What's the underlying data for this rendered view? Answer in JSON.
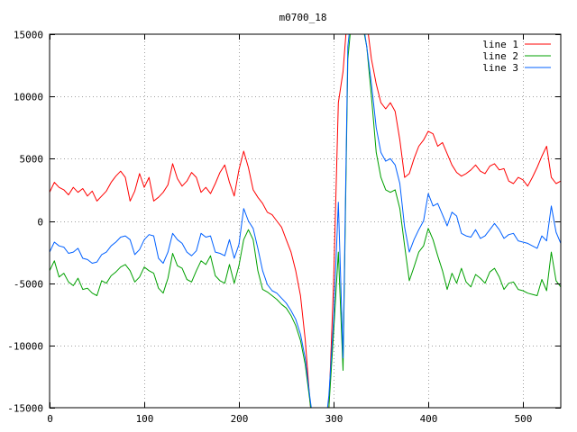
{
  "chart_data": {
    "type": "line",
    "title": "m0700_18",
    "xlabel": "",
    "ylabel": "",
    "xlim": [
      0,
      540
    ],
    "ylim": [
      -15000,
      15000
    ],
    "x_ticks": [
      0,
      100,
      200,
      300,
      400,
      500
    ],
    "y_ticks": [
      -15000,
      -10000,
      -5000,
      0,
      5000,
      10000,
      15000
    ],
    "grid": true,
    "legend_position": "top-right",
    "series": [
      {
        "name": "line 1",
        "color": "#ff0000",
        "x": [
          0,
          5,
          10,
          15,
          20,
          25,
          30,
          35,
          40,
          45,
          50,
          55,
          60,
          65,
          70,
          75,
          80,
          85,
          90,
          95,
          100,
          105,
          110,
          115,
          120,
          125,
          130,
          135,
          140,
          145,
          150,
          155,
          160,
          165,
          170,
          175,
          180,
          185,
          190,
          195,
          200,
          205,
          210,
          215,
          220,
          225,
          230,
          235,
          240,
          245,
          250,
          255,
          260,
          265,
          270,
          275,
          280,
          285,
          290,
          295,
          300,
          305,
          310,
          315,
          320,
          325,
          330,
          335,
          340,
          345,
          350,
          355,
          360,
          365,
          370,
          375,
          380,
          385,
          390,
          395,
          400,
          405,
          410,
          415,
          420,
          425,
          430,
          435,
          440,
          445,
          450,
          455,
          460,
          465,
          470,
          475,
          480,
          485,
          490,
          495,
          500,
          505,
          510,
          515,
          520,
          525,
          530,
          535,
          540
        ],
        "values": [
          2300,
          3100,
          2700,
          2500,
          2100,
          2700,
          2300,
          2600,
          2000,
          2400,
          1600,
          2000,
          2400,
          3100,
          3600,
          4000,
          3500,
          1600,
          2400,
          3800,
          2700,
          3500,
          1600,
          1900,
          2300,
          2900,
          4600,
          3400,
          2800,
          3200,
          3900,
          3500,
          2300,
          2700,
          2200,
          3000,
          3900,
          4500,
          3100,
          2000,
          4100,
          5600,
          4300,
          2500,
          1900,
          1400,
          700,
          500,
          0,
          -500,
          -1500,
          -2500,
          -4000,
          -6000,
          -9500,
          -14500,
          -18000,
          -18000,
          -17000,
          -15000,
          -5000,
          9500,
          12000,
          17000,
          19000,
          18000,
          17000,
          16000,
          13000,
          11000,
          9500,
          9000,
          9500,
          8800,
          6500,
          3500,
          3800,
          5000,
          6000,
          6500,
          7200,
          7000,
          6000,
          6300,
          5400,
          4500,
          3900,
          3600,
          3800,
          4100,
          4500,
          4000,
          3800,
          4400,
          4600,
          4100,
          4200,
          3200,
          3000,
          3500,
          3300,
          2800,
          3500,
          4300,
          5200,
          6000,
          3500,
          3000,
          3200
        ]
      },
      {
        "name": "line 2",
        "color": "#00a000",
        "x": [
          0,
          5,
          10,
          15,
          20,
          25,
          30,
          35,
          40,
          45,
          50,
          55,
          60,
          65,
          70,
          75,
          80,
          85,
          90,
          95,
          100,
          105,
          110,
          115,
          120,
          125,
          130,
          135,
          140,
          145,
          150,
          155,
          160,
          165,
          170,
          175,
          180,
          185,
          190,
          195,
          200,
          205,
          210,
          215,
          220,
          225,
          230,
          235,
          240,
          245,
          250,
          255,
          260,
          265,
          270,
          275,
          280,
          285,
          290,
          295,
          300,
          305,
          310,
          315,
          320,
          325,
          330,
          335,
          340,
          345,
          350,
          355,
          360,
          365,
          370,
          375,
          380,
          385,
          390,
          395,
          400,
          405,
          410,
          415,
          420,
          425,
          430,
          435,
          440,
          445,
          450,
          455,
          460,
          465,
          470,
          475,
          480,
          485,
          490,
          495,
          500,
          505,
          510,
          515,
          520,
          525,
          530,
          535,
          540
        ],
        "values": [
          -4000,
          -3200,
          -4500,
          -4200,
          -4900,
          -5200,
          -4600,
          -5500,
          -5400,
          -5800,
          -6000,
          -4800,
          -5000,
          -4400,
          -4100,
          -3700,
          -3500,
          -4000,
          -4900,
          -4500,
          -3700,
          -4000,
          -4200,
          -5400,
          -5800,
          -4600,
          -2600,
          -3600,
          -3800,
          -4700,
          -4900,
          -4000,
          -3200,
          -3500,
          -2800,
          -4400,
          -4800,
          -5000,
          -3500,
          -5000,
          -3600,
          -1500,
          -700,
          -1500,
          -4000,
          -5500,
          -5700,
          -6000,
          -6300,
          -6700,
          -7000,
          -7600,
          -8400,
          -9600,
          -11500,
          -14500,
          -18000,
          -18000,
          -17500,
          -15000,
          -9000,
          -2500,
          -12000,
          13000,
          17000,
          18000,
          16000,
          14000,
          10000,
          5500,
          3500,
          2500,
          2300,
          2500,
          1000,
          -2000,
          -4800,
          -3700,
          -2500,
          -2000,
          -600,
          -1500,
          -2800,
          -4000,
          -5500,
          -4200,
          -5000,
          -3800,
          -4900,
          -5300,
          -4300,
          -4600,
          -5000,
          -4100,
          -3800,
          -4500,
          -5500,
          -5000,
          -4900,
          -5500,
          -5600,
          -5800,
          -5900,
          -6000,
          -4700,
          -5600,
          -2500,
          -4800,
          -5300
        ]
      },
      {
        "name": "line 3",
        "color": "#0060ff",
        "x": [
          0,
          5,
          10,
          15,
          20,
          25,
          30,
          35,
          40,
          45,
          50,
          55,
          60,
          65,
          70,
          75,
          80,
          85,
          90,
          95,
          100,
          105,
          110,
          115,
          120,
          125,
          130,
          135,
          140,
          145,
          150,
          155,
          160,
          165,
          170,
          175,
          180,
          185,
          190,
          195,
          200,
          205,
          210,
          215,
          220,
          225,
          230,
          235,
          240,
          245,
          250,
          255,
          260,
          265,
          270,
          275,
          280,
          285,
          290,
          295,
          300,
          305,
          310,
          315,
          320,
          325,
          330,
          335,
          340,
          345,
          350,
          355,
          360,
          365,
          370,
          375,
          380,
          385,
          390,
          395,
          400,
          405,
          410,
          415,
          420,
          425,
          430,
          435,
          440,
          445,
          450,
          455,
          460,
          465,
          470,
          475,
          480,
          485,
          490,
          495,
          500,
          505,
          510,
          515,
          520,
          525,
          530,
          535,
          540
        ],
        "values": [
          -2500,
          -1700,
          -2000,
          -2100,
          -2600,
          -2500,
          -2200,
          -3000,
          -3100,
          -3400,
          -3300,
          -2700,
          -2500,
          -2000,
          -1700,
          -1300,
          -1200,
          -1500,
          -2700,
          -2300,
          -1500,
          -1100,
          -1200,
          -3000,
          -3400,
          -2500,
          -1000,
          -1500,
          -1800,
          -2500,
          -2800,
          -2400,
          -1000,
          -1300,
          -1200,
          -2500,
          -2600,
          -2800,
          -1500,
          -3000,
          -1900,
          1000,
          0,
          -600,
          -2200,
          -4000,
          -5100,
          -5600,
          -5800,
          -6200,
          -6600,
          -7200,
          -7900,
          -9100,
          -11000,
          -14200,
          -17000,
          -18000,
          -17500,
          -14000,
          -8000,
          1500,
          -11000,
          14000,
          17500,
          18000,
          16500,
          14000,
          11000,
          7500,
          5500,
          4800,
          5000,
          4500,
          3000,
          -500,
          -2500,
          -1500,
          -700,
          0,
          2200,
          1200,
          1400,
          500,
          -400,
          700,
          400,
          -1000,
          -1200,
          -1300,
          -700,
          -1400,
          -1200,
          -700,
          -200,
          -700,
          -1400,
          -1100,
          -1000,
          -1600,
          -1700,
          -1800,
          -2000,
          -2200,
          -1200,
          -1600,
          1200,
          -900,
          -1800
        ]
      }
    ]
  }
}
